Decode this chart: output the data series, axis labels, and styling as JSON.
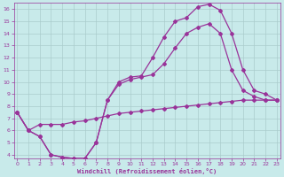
{
  "xlabel": "Windchill (Refroidissement éolien,°C)",
  "bg_color": "#c8eaea",
  "line_color": "#993399",
  "grid_color": "#aacccc",
  "xlim": [
    -0.3,
    23.3
  ],
  "ylim": [
    3.7,
    16.5
  ],
  "yticks": [
    4,
    5,
    6,
    7,
    8,
    9,
    10,
    11,
    12,
    13,
    14,
    15,
    16
  ],
  "xticks": [
    0,
    1,
    2,
    3,
    4,
    5,
    6,
    7,
    8,
    9,
    10,
    11,
    12,
    13,
    14,
    15,
    16,
    17,
    18,
    19,
    20,
    21,
    22,
    23
  ],
  "line1_x": [
    0,
    1,
    2,
    3,
    4,
    5,
    6,
    7,
    8,
    9,
    10,
    11,
    12,
    13,
    14,
    15,
    16,
    17,
    18,
    19,
    20,
    21,
    22,
    23
  ],
  "line1_y": [
    7.5,
    6.0,
    6.5,
    6.5,
    6.5,
    6.7,
    6.8,
    7.0,
    7.2,
    7.4,
    7.5,
    7.6,
    7.7,
    7.8,
    7.9,
    8.0,
    8.1,
    8.2,
    8.3,
    8.4,
    8.5,
    8.5,
    8.5,
    8.5
  ],
  "line2_x": [
    0,
    1,
    2,
    3,
    4,
    5,
    6,
    7,
    8,
    9,
    10,
    11,
    12,
    13,
    14,
    15,
    16,
    17,
    18,
    19,
    20,
    21,
    22,
    23
  ],
  "line2_y": [
    7.5,
    6.0,
    5.5,
    4.0,
    3.8,
    3.7,
    3.7,
    5.0,
    8.5,
    9.8,
    10.2,
    10.4,
    10.6,
    11.5,
    12.8,
    14.0,
    14.5,
    14.8,
    14.0,
    11.0,
    9.3,
    8.8,
    8.5,
    8.5
  ],
  "line3_x": [
    0,
    1,
    2,
    3,
    4,
    5,
    6,
    7,
    8,
    9,
    10,
    11,
    12,
    13,
    14,
    15,
    16,
    17,
    18,
    19,
    20,
    21,
    22,
    23
  ],
  "line3_y": [
    7.5,
    6.0,
    5.5,
    4.0,
    3.8,
    3.7,
    3.7,
    5.0,
    8.5,
    10.0,
    10.4,
    10.5,
    12.0,
    13.7,
    15.0,
    15.3,
    16.2,
    16.4,
    15.9,
    14.0,
    11.0,
    9.3,
    9.0,
    8.5
  ]
}
